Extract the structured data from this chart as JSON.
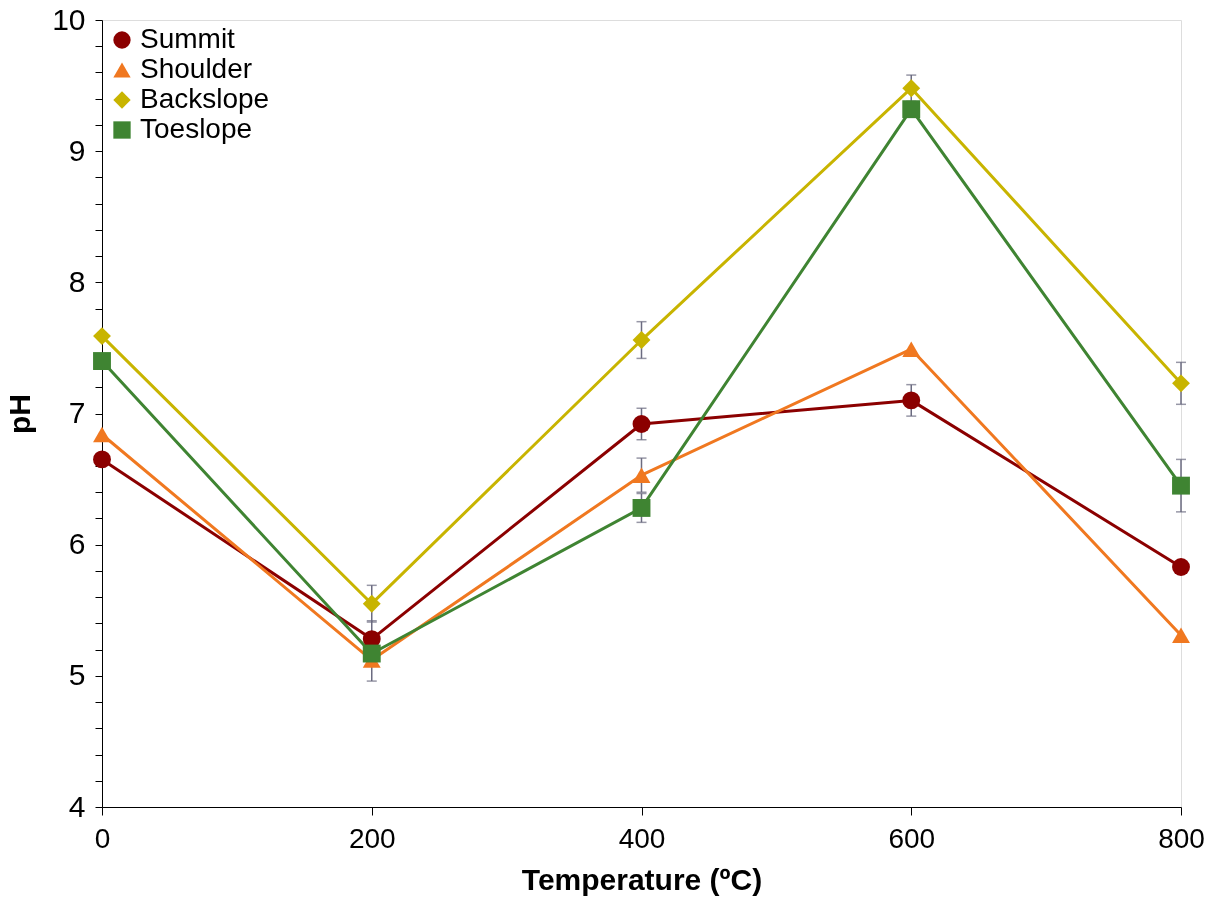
{
  "chart_data": {
    "type": "line",
    "xlabel": "Temperature (ºC)",
    "ylabel": "pH",
    "x": [
      0,
      200,
      400,
      600,
      800
    ],
    "xlim": [
      0,
      800
    ],
    "xticks": [
      0,
      200,
      400,
      600,
      800
    ],
    "ylim": [
      4,
      10
    ],
    "yticks": [
      4,
      {
        "value": 4.2,
        "label": null
      },
      {
        "value": 4.4,
        "label": null
      },
      {
        "value": 4.6,
        "label": null
      },
      {
        "value": 4.8,
        "label": null
      },
      5,
      {
        "value": 5.2,
        "label": null
      },
      {
        "value": 5.4,
        "label": null
      },
      {
        "value": 5.6,
        "label": null
      },
      {
        "value": 5.8,
        "label": null
      },
      6,
      {
        "value": 6.2,
        "label": null
      },
      {
        "value": 6.4,
        "label": null
      },
      {
        "value": 6.6,
        "label": null
      },
      {
        "value": 6.8,
        "label": null
      },
      7,
      {
        "value": 7.2,
        "label": null
      },
      {
        "value": 7.4,
        "label": null
      },
      {
        "value": 7.6,
        "label": null
      },
      {
        "value": 7.8,
        "label": null
      },
      8,
      {
        "value": 8.2,
        "label": null
      },
      {
        "value": 8.4,
        "label": null
      },
      {
        "value": 8.6,
        "label": null
      },
      {
        "value": 8.8,
        "label": null
      },
      9,
      {
        "value": 9.2,
        "label": null
      },
      {
        "value": 9.4,
        "label": null
      },
      {
        "value": 9.6,
        "label": null
      },
      {
        "value": 9.8,
        "label": null
      },
      10
    ],
    "grid": false,
    "legend": "top left",
    "line_style": "solid",
    "series": [
      {
        "name": "Summit",
        "color": "#8b0000",
        "marker": "circle",
        "values": [
          6.65,
          5.28,
          6.92,
          7.1,
          5.83
        ],
        "errors": [
          null,
          0.14,
          0.12,
          0.12,
          null
        ]
      },
      {
        "name": "Shoulder",
        "color": "#f07820",
        "marker": "triangle",
        "values": [
          6.84,
          5.12,
          6.53,
          7.49,
          5.31
        ],
        "errors": [
          null,
          0.16,
          0.13,
          null,
          null
        ]
      },
      {
        "name": "Backslope",
        "color": "#c8b400",
        "marker": "diamond",
        "values": [
          7.59,
          5.55,
          7.56,
          9.48,
          7.23
        ],
        "errors": [
          null,
          0.14,
          0.14,
          0.1,
          0.16
        ]
      },
      {
        "name": "Toeslope",
        "color": "#3f8432",
        "marker": "square",
        "values": [
          7.4,
          5.17,
          6.28,
          9.32,
          6.45
        ],
        "errors": [
          null,
          null,
          0.11,
          null,
          0.2
        ]
      }
    ]
  }
}
